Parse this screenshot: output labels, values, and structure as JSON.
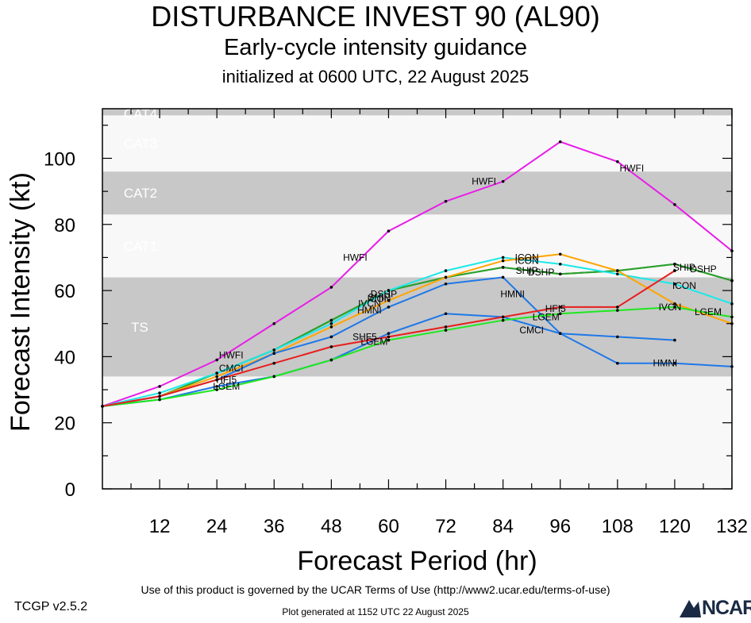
{
  "titles": {
    "line1": "DISTURBANCE INVEST 90 (AL90)",
    "line2": "Early-cycle intensity guidance",
    "line3": "initialized at 0600 UTC, 22 August 2025"
  },
  "footer": {
    "version": "TCGP v2.5.2",
    "terms": "Use of this product is governed by the UCAR Terms of Use (http://www2.ucar.edu/terms-of-use)",
    "generated": "Plot generated at 1152 UTC   22 August 2025",
    "logo_text": "NCAR"
  },
  "chart_data": {
    "type": "line",
    "xlabel": "Forecast Period (hr)",
    "ylabel": "Forecast Intensity (kt)",
    "xlim": [
      0,
      132
    ],
    "ylim": [
      0,
      115
    ],
    "xticks": [
      12,
      24,
      36,
      48,
      60,
      72,
      84,
      96,
      108,
      120,
      132
    ],
    "yticks": [
      0,
      20,
      40,
      60,
      80,
      100
    ],
    "grid": false,
    "legend": "none",
    "category_bands": [
      {
        "name": "TS",
        "from": 34,
        "to": 64,
        "shade": "#c8c8c8"
      },
      {
        "name": "CAT1",
        "from": 64,
        "to": 83,
        "shade": "#f8f8f8"
      },
      {
        "name": "CAT2",
        "from": 83,
        "to": 96,
        "shade": "#c8c8c8"
      },
      {
        "name": "CAT3",
        "from": 96,
        "to": 113,
        "shade": "#f8f8f8"
      },
      {
        "name": "CAT4",
        "from": 113,
        "to": 137,
        "shade": "#c8c8c8"
      }
    ],
    "below_ts_shade": "#f8f8f8",
    "series": [
      {
        "name": "HWFI",
        "color": "#e81ee8",
        "points": [
          [
            0,
            25
          ],
          [
            12,
            31
          ],
          [
            24,
            39
          ],
          [
            36,
            50
          ],
          [
            48,
            61
          ],
          [
            60,
            78
          ],
          [
            72,
            87
          ],
          [
            84,
            93
          ],
          [
            96,
            105
          ],
          [
            108,
            99
          ],
          [
            120,
            86
          ],
          [
            132,
            72
          ]
        ],
        "labels": [
          [
            27,
            40.5
          ],
          [
            53,
            70
          ],
          [
            80,
            93
          ],
          [
            111,
            97
          ]
        ]
      },
      {
        "name": "SHIP",
        "color": "#2ca02c",
        "points": [
          [
            0,
            25
          ],
          [
            12,
            28
          ],
          [
            24,
            35
          ],
          [
            36,
            42
          ],
          [
            48,
            51
          ],
          [
            60,
            60
          ],
          [
            72,
            64
          ],
          [
            84,
            67
          ],
          [
            96,
            65
          ],
          [
            108,
            66
          ],
          [
            120,
            68
          ],
          [
            132,
            63
          ]
        ],
        "labels": [
          [
            58,
            58
          ],
          [
            89,
            66
          ],
          [
            122,
            67
          ]
        ]
      },
      {
        "name": "DSHP",
        "color": "#2ca02c",
        "points": [
          [
            0,
            25
          ],
          [
            12,
            28
          ],
          [
            24,
            35
          ],
          [
            36,
            42
          ],
          [
            48,
            51
          ],
          [
            60,
            60
          ],
          [
            72,
            64
          ],
          [
            84,
            67
          ],
          [
            96,
            65
          ],
          [
            108,
            66
          ],
          [
            120,
            68
          ],
          [
            132,
            63
          ]
        ],
        "labels": [
          [
            59,
            59
          ],
          [
            92,
            65.5
          ],
          [
            126,
            66.5
          ]
        ]
      },
      {
        "name": "ICON",
        "color": "#1ce8e8",
        "points": [
          [
            0,
            25
          ],
          [
            12,
            29
          ],
          [
            24,
            35
          ],
          [
            36,
            42
          ],
          [
            48,
            50
          ],
          [
            60,
            60
          ],
          [
            72,
            66
          ],
          [
            84,
            70
          ],
          [
            96,
            68
          ],
          [
            108,
            65
          ],
          [
            120,
            62
          ],
          [
            132,
            56
          ]
        ],
        "labels": [
          [
            58,
            57.5
          ],
          [
            89,
            70
          ],
          [
            89,
            69
          ],
          [
            122,
            61.5
          ]
        ]
      },
      {
        "name": "IVCN",
        "color": "#ffa500",
        "points": [
          [
            0,
            25
          ],
          [
            12,
            28
          ],
          [
            24,
            34
          ],
          [
            36,
            41
          ],
          [
            48,
            49
          ],
          [
            60,
            57
          ],
          [
            72,
            64
          ],
          [
            84,
            69
          ],
          [
            96,
            71
          ],
          [
            108,
            66
          ],
          [
            120,
            56
          ],
          [
            132,
            50
          ]
        ],
        "labels": [
          [
            56,
            56
          ],
          [
            119,
            55
          ]
        ]
      },
      {
        "name": "HMNI",
        "color": "#1e78e8",
        "points": [
          [
            0,
            25
          ],
          [
            12,
            28
          ],
          [
            24,
            33
          ],
          [
            36,
            41
          ],
          [
            48,
            46
          ],
          [
            60,
            55
          ],
          [
            72,
            62
          ],
          [
            84,
            64
          ],
          [
            96,
            47
          ],
          [
            108,
            38
          ],
          [
            120,
            38
          ],
          [
            132,
            37
          ]
        ],
        "labels": [
          [
            56,
            54
          ],
          [
            86,
            59
          ],
          [
            118,
            38
          ]
        ]
      },
      {
        "name": "HMON",
        "color": "#1e78e8",
        "points": [
          [
            0,
            25
          ],
          [
            12,
            27
          ],
          [
            24,
            31
          ],
          [
            36,
            34
          ],
          [
            48,
            39
          ],
          [
            60,
            47
          ],
          [
            72,
            53
          ],
          [
            84,
            52
          ],
          [
            96,
            47
          ],
          [
            108,
            46
          ],
          [
            120,
            45
          ]
        ],
        "labels": [
          [
            27,
            36.5
          ]
        ]
      },
      {
        "name": "LGEM",
        "color": "#1ee81e",
        "points": [
          [
            0,
            25
          ],
          [
            12,
            27
          ],
          [
            24,
            30
          ],
          [
            36,
            34
          ],
          [
            48,
            39
          ],
          [
            60,
            45
          ],
          [
            72,
            48
          ],
          [
            84,
            51
          ],
          [
            96,
            53
          ],
          [
            108,
            54
          ],
          [
            120,
            55
          ],
          [
            132,
            52
          ]
        ],
        "labels": [
          [
            26,
            31
          ],
          [
            57,
            44.5
          ],
          [
            93,
            52
          ],
          [
            127,
            53.5
          ]
        ]
      },
      {
        "name": "HFIP",
        "color": "#e81e1e",
        "points": [
          [
            0,
            25
          ],
          [
            12,
            28
          ],
          [
            24,
            33
          ],
          [
            36,
            38
          ],
          [
            48,
            43
          ],
          [
            60,
            46
          ],
          [
            72,
            49
          ],
          [
            84,
            52
          ],
          [
            96,
            55
          ],
          [
            108,
            55
          ],
          [
            120,
            66
          ]
        ],
        "labels": [
          [
            26,
            33
          ],
          [
            55,
            46
          ],
          [
            95,
            54.5
          ]
        ]
      },
      {
        "name": "CMCI",
        "color": "#1e78e8",
        "points": [
          [
            90,
            48
          ]
        ],
        "labels": [
          [
            90,
            48
          ]
        ]
      }
    ],
    "label_texts": {
      "HWFI": [
        "HWFI",
        "HWFI",
        "HWFI",
        "HWFI"
      ],
      "SHIP": [
        "SHIP",
        "SHIP",
        "SHIP"
      ],
      "DSHP": [
        "DSHP",
        "DSHP",
        "DSHP"
      ],
      "ICON": [
        "ICON",
        "ICON",
        "ICON",
        "ICON"
      ],
      "IVCN": [
        "IVCN",
        "IVCN"
      ],
      "HMNI": [
        "HMNI",
        "HMNI",
        "HMNI"
      ],
      "HMON": [
        "CMCI"
      ],
      "LGEM": [
        "LGEM",
        "LGEM",
        "LGEM",
        "LGEM"
      ],
      "HFIP": [
        "HFI5",
        "SHF5",
        "HFI5"
      ],
      "CMCI": [
        "CMCI"
      ]
    }
  }
}
